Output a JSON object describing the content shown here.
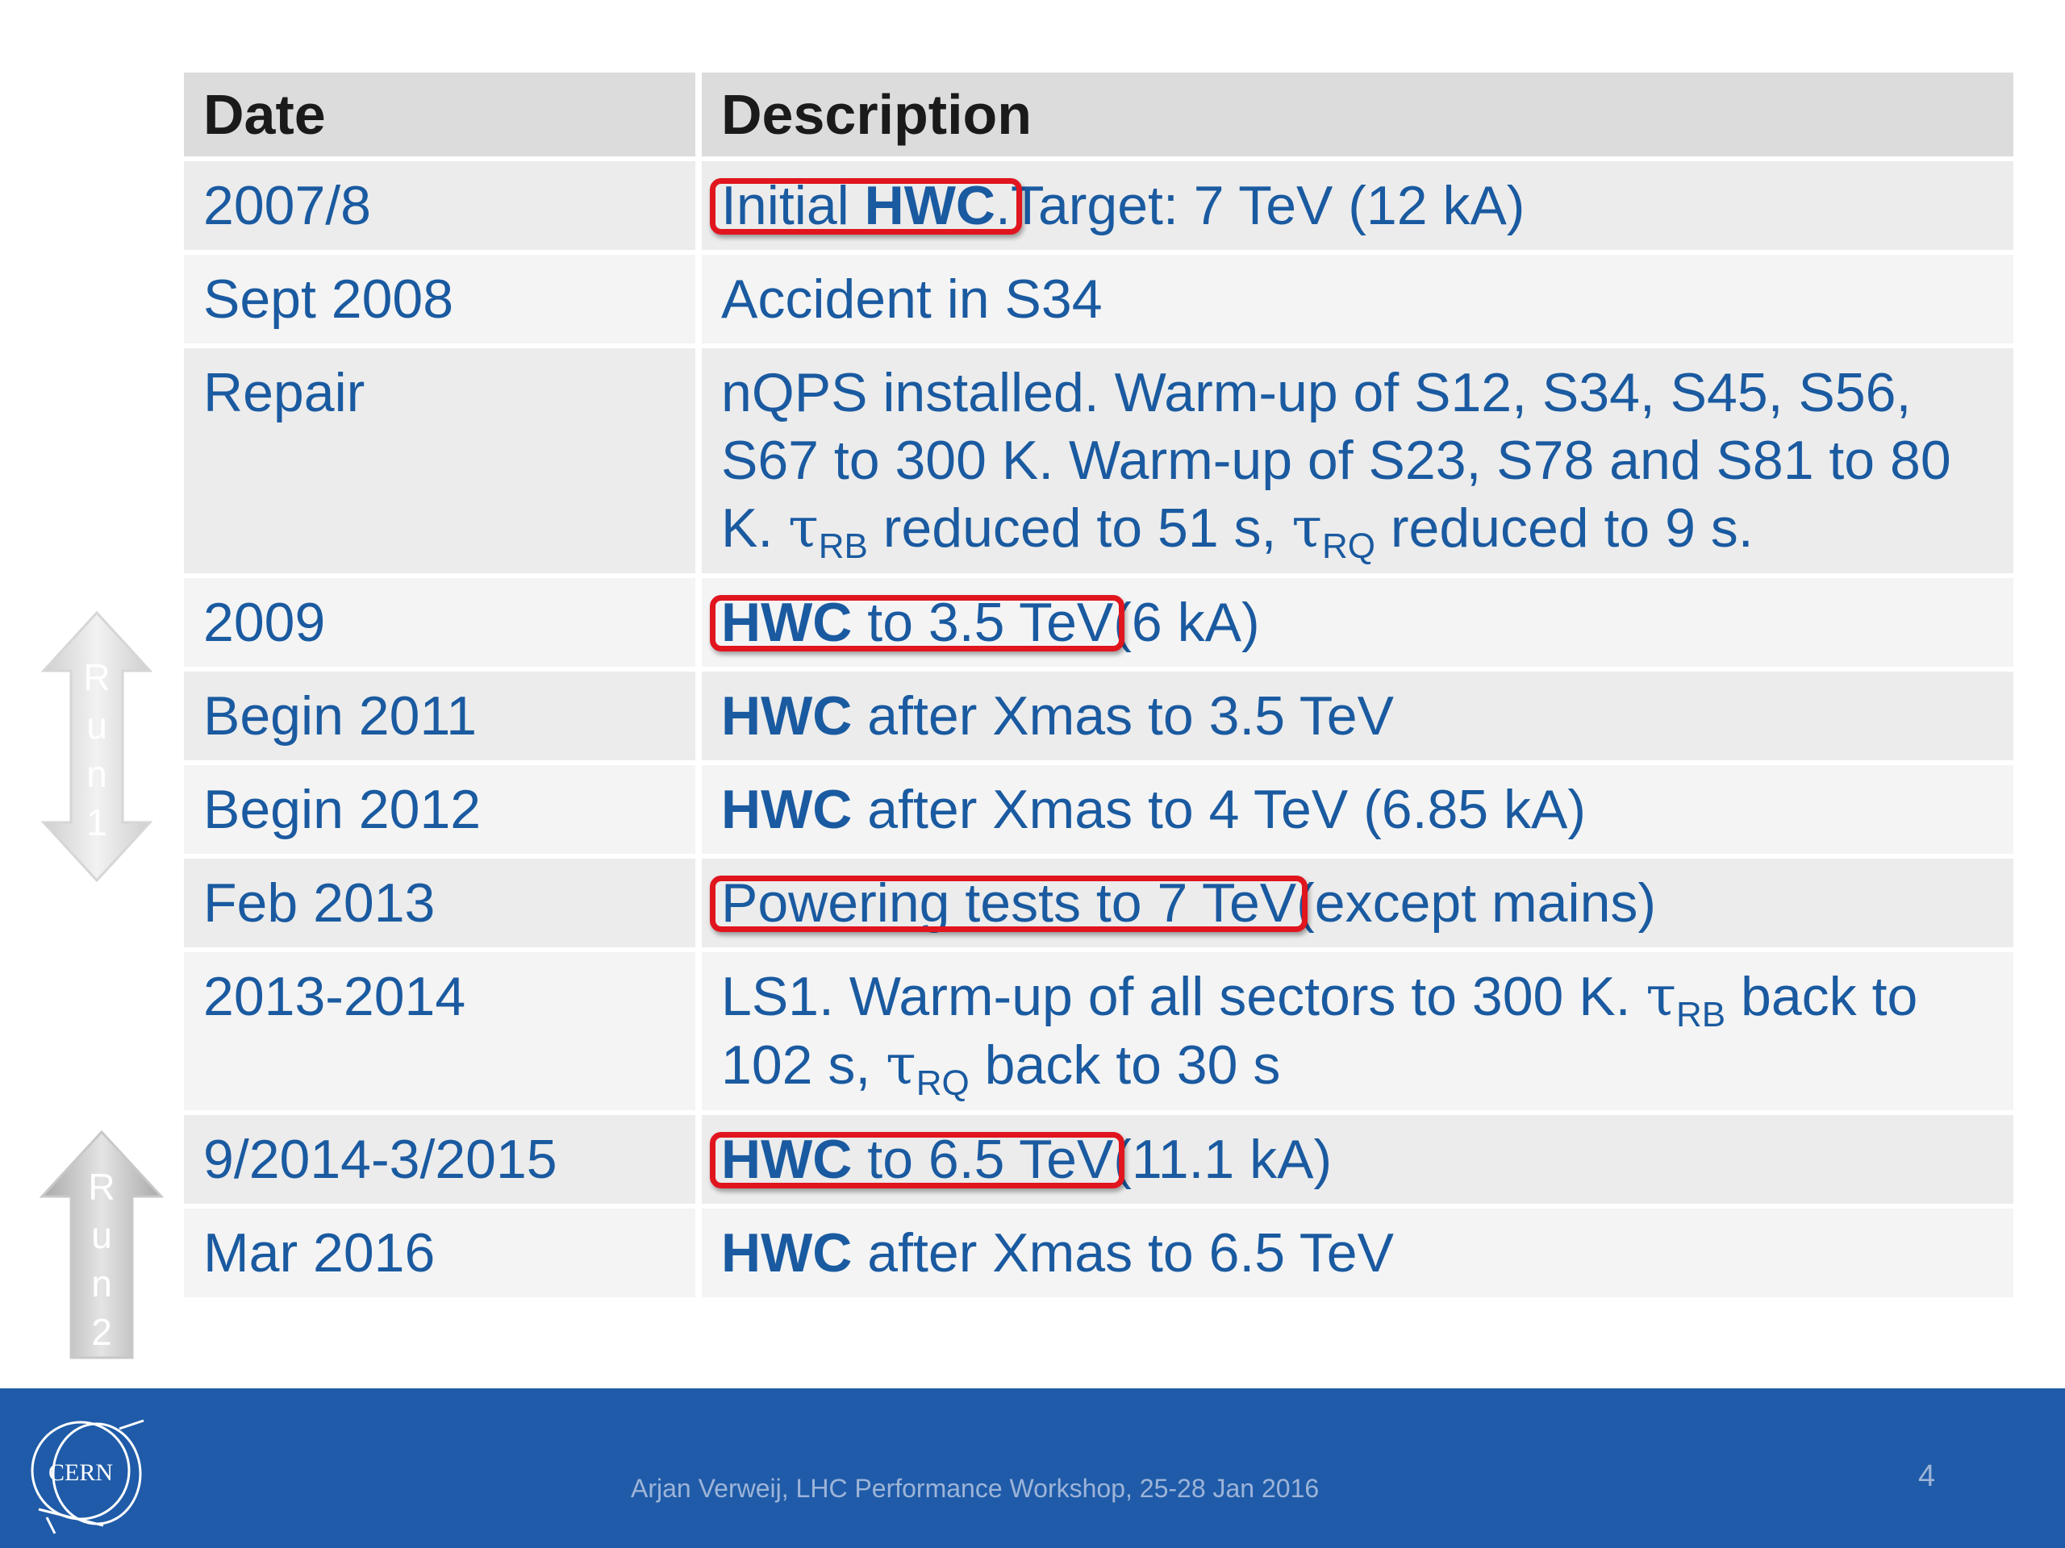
{
  "table": {
    "headers": {
      "date": "Date",
      "description": "Description"
    },
    "rows": [
      {
        "date": "2007/8",
        "hl_a": "Initial ",
        "hl_b": "HWC",
        "hl_c": ".",
        "rest": "Target: 7 TeV (12 kA)"
      },
      {
        "date": "Sept 2008",
        "text": "Accident in S34"
      },
      {
        "date": "Repair",
        "p1": "nQPS installed. Warm-up of S12, S34, S45, S56, S67 to 300 K. Warm-up of S23, S78 and S81 to 80 K. ",
        "tau": "τ",
        "sub1": "RB",
        "p2": " reduced to 51 s, ",
        "sub2": "RQ",
        "p3": " reduced to 9 s."
      },
      {
        "date": "2009",
        "hl_bold": "HWC",
        "hl_rest": " to 3.5 TeV",
        "rest": "(6 kA)"
      },
      {
        "date": "Begin 2011",
        "bold": "HWC",
        "rest": " after Xmas to 3.5 TeV"
      },
      {
        "date": "Begin 2012",
        "bold": "HWC",
        "rest": " after Xmas to 4 TeV (6.85 kA)"
      },
      {
        "date": "Feb 2013",
        "hl": "Powering tests to 7 TeV",
        "rest": "(except mains)"
      },
      {
        "date": "2013-2014",
        "p1": "LS1. Warm-up of all sectors to 300 K. ",
        "sub1": "RB",
        "p2": " back to 102 s, ",
        "sub2": "RQ",
        "p3": " back to 30 s"
      },
      {
        "date": "9/2014-3/2015",
        "hl_bold": "HWC",
        "hl_rest": " to 6.5 TeV",
        "rest": "(11.1 kA)"
      },
      {
        "date": "Mar 2016",
        "bold": "HWC",
        "rest": " after Xmas to 6.5 TeV"
      }
    ]
  },
  "arrows": {
    "run1": [
      "R",
      "u",
      "n",
      "1"
    ],
    "run2": [
      "R",
      "u",
      "n",
      "2"
    ]
  },
  "footer": {
    "logo_text": "CERN",
    "text": "Arjan Verweij, LHC Performance Workshop, 25-28 Jan 2016",
    "page_number": "4"
  }
}
